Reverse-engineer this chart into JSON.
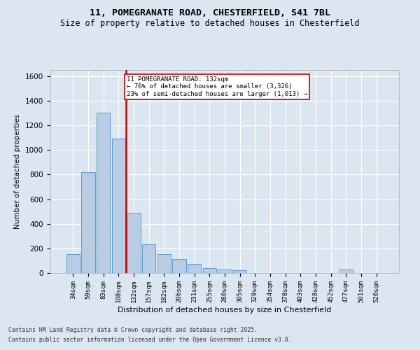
{
  "title_line1": "11, POMEGRANATE ROAD, CHESTERFIELD, S41 7BL",
  "title_line2": "Size of property relative to detached houses in Chesterfield",
  "xlabel": "Distribution of detached houses by size in Chesterfield",
  "ylabel": "Number of detached properties",
  "categories": [
    "34sqm",
    "59sqm",
    "83sqm",
    "108sqm",
    "132sqm",
    "157sqm",
    "182sqm",
    "206sqm",
    "231sqm",
    "255sqm",
    "280sqm",
    "305sqm",
    "329sqm",
    "354sqm",
    "378sqm",
    "403sqm",
    "428sqm",
    "452sqm",
    "477sqm",
    "501sqm",
    "526sqm"
  ],
  "values": [
    155,
    820,
    1305,
    1095,
    490,
    235,
    155,
    115,
    75,
    40,
    30,
    20,
    0,
    0,
    0,
    0,
    0,
    0,
    30,
    0,
    0
  ],
  "bar_color": "#b8cce4",
  "bar_edge_color": "#5b9bd5",
  "red_line_index": 4,
  "annotation_text": "11 POMEGRANATE ROAD: 132sqm\n← 76% of detached houses are smaller (3,326)\n23% of semi-detached houses are larger (1,013) →",
  "annotation_box_color": "#ffffff",
  "annotation_box_edge_color": "#cc0000",
  "red_line_color": "#cc0000",
  "ylim": [
    0,
    1650
  ],
  "yticks": [
    0,
    200,
    400,
    600,
    800,
    1000,
    1200,
    1400,
    1600
  ],
  "fig_background_color": "#dce6f1",
  "plot_background_color": "#dce6f1",
  "footer_line1": "Contains HM Land Registry data © Crown copyright and database right 2025.",
  "footer_line2": "Contains public sector information licensed under the Open Government Licence v3.0."
}
